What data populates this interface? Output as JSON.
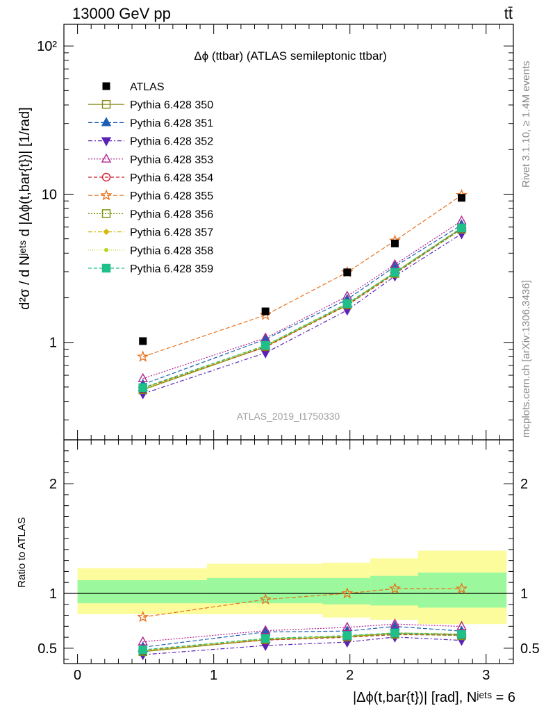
{
  "header": {
    "left": "13000 GeV pp",
    "right": "tt̄",
    "side_right_top": "Rivet 3.1.10, ≥ 1.4M events",
    "side_right_bottom": "mcplots.cern.ch [arXiv:1306.3436]",
    "watermark": "ATLAS_2019_I1750330"
  },
  "chart_data": [
    {
      "id": "main",
      "type": "scatter",
      "title": "Δϕ (ttbar) (ATLAS semileptonic ttbar)",
      "ylabel": "d²σ / d Nʲᵉᵗˢ d |Δϕ(t,bar{t})| [1/rad]",
      "yscale": "log",
      "xlim": [
        -0.1,
        3.2
      ],
      "ylim": [
        0.22,
        140
      ],
      "y_tick_labels": [
        "1",
        "10",
        "10²"
      ],
      "x": [
        0.48,
        1.38,
        1.98,
        2.33,
        2.82
      ],
      "data": {
        "name": "ATLAS",
        "values": [
          1.02,
          1.62,
          2.97,
          4.65,
          9.45
        ],
        "color": "#000000"
      },
      "series": [
        {
          "name": "Pythia 6.428 350",
          "values": [
            0.478,
            0.935,
            1.8,
            2.95,
            5.9
          ],
          "color": "#8c8c1f",
          "marker": "square-open",
          "dash": "solid"
        },
        {
          "name": "Pythia 6.428 351",
          "values": [
            0.52,
            1.05,
            1.95,
            3.25,
            6.2
          ],
          "color": "#1a5fb4",
          "marker": "triangle-up",
          "dash": "6,3"
        },
        {
          "name": "Pythia 6.428 352",
          "values": [
            0.45,
            0.85,
            1.65,
            2.8,
            5.4
          ],
          "color": "#5b21b6",
          "marker": "triangle-down",
          "dash": "6,3,2,3"
        },
        {
          "name": "Pythia 6.428 353",
          "values": [
            0.57,
            1.07,
            2.05,
            3.35,
            6.6
          ],
          "color": "#b1228f",
          "marker": "triangle-up-open",
          "dash": "2,2"
        },
        {
          "name": "Pythia 6.428 354",
          "values": [
            0.49,
            0.93,
            1.78,
            2.9,
            5.85
          ],
          "color": "#d01f2f",
          "marker": "circle-open",
          "dash": "5,3"
        },
        {
          "name": "Pythia 6.428 355",
          "values": [
            0.8,
            1.53,
            2.97,
            4.85,
            9.85
          ],
          "color": "#e8701a",
          "marker": "star-open",
          "dash": "6,3"
        },
        {
          "name": "Pythia 6.428 356",
          "values": [
            0.48,
            0.94,
            1.79,
            2.92,
            5.8
          ],
          "color": "#7a9a10",
          "marker": "square-open",
          "dash": "2,2"
        },
        {
          "name": "Pythia 6.428 357",
          "values": [
            0.49,
            0.95,
            1.82,
            2.98,
            5.95
          ],
          "color": "#d6b80c",
          "marker": "diamond-small",
          "dash": "6,3,2,3"
        },
        {
          "name": "Pythia 6.428 358",
          "values": [
            0.485,
            0.94,
            1.8,
            2.95,
            5.9
          ],
          "color": "#b8d41a",
          "marker": "dot",
          "dash": "1,2"
        },
        {
          "name": "Pythia 6.428 359",
          "values": [
            0.495,
            0.955,
            1.83,
            2.97,
            5.92
          ],
          "color": "#1fbf8a",
          "marker": "square",
          "dash": "5,3"
        }
      ]
    },
    {
      "id": "ratio",
      "type": "line",
      "ylabel": "Ratio to ATLAS",
      "xlabel": "|Δϕ(t,bar{t})| [rad], Nʲᵉᵗˢ = 6",
      "xlim": [
        -0.1,
        3.2
      ],
      "ylim": [
        0.36,
        2.4
      ],
      "reference_line": 1,
      "x_tick_labels": [
        "0",
        "1",
        "2",
        "3"
      ],
      "y_tick_labels": [
        "0.5",
        "1",
        "2"
      ],
      "bands": [
        {
          "x0": 0.0,
          "x1": 0.95,
          "inner": [
            0.91,
            1.12
          ],
          "outer": [
            0.81,
            1.23
          ]
        },
        {
          "x0": 0.95,
          "x1": 1.8,
          "inner": [
            0.91,
            1.14
          ],
          "outer": [
            0.81,
            1.27
          ]
        },
        {
          "x0": 1.8,
          "x1": 2.15,
          "inner": [
            0.9,
            1.14
          ],
          "outer": [
            0.78,
            1.28
          ]
        },
        {
          "x0": 2.15,
          "x1": 2.5,
          "inner": [
            0.89,
            1.16
          ],
          "outer": [
            0.76,
            1.32
          ]
        },
        {
          "x0": 2.5,
          "x1": 3.15,
          "inner": [
            0.87,
            1.19
          ],
          "outer": [
            0.72,
            1.39
          ]
        }
      ],
      "band_colors": {
        "inner": "#9cf89c",
        "outer": "#fcfc9c"
      }
    }
  ]
}
